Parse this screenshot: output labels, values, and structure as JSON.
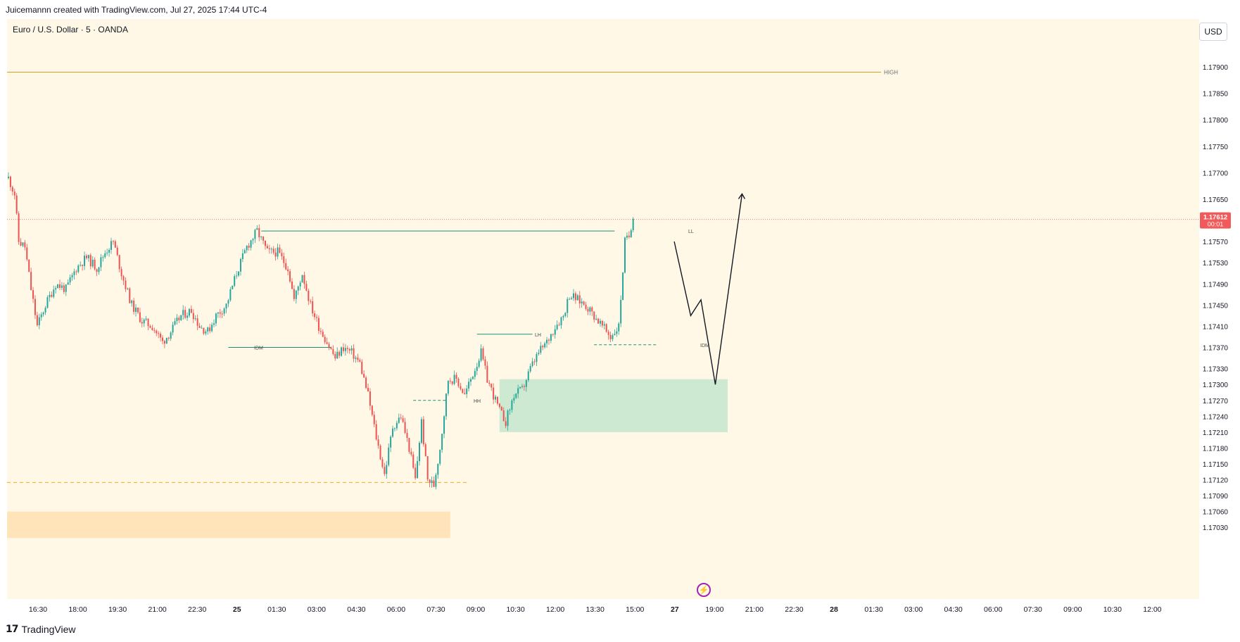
{
  "header": {
    "attribution": "Juicemannn created with TradingView.com, Jul 27, 2025 17:44 UTC-4"
  },
  "symbol_title": "Euro / U.S. Dollar · 5 · OANDA",
  "currency_button": "USD",
  "footer": {
    "logo_glyph": "17",
    "brand": "TradingView"
  },
  "icons": {
    "lightning": "lightning-icon",
    "logo": "tradingview-logo-icon"
  },
  "colors": {
    "background": "#fff8e7",
    "up_candle": "#26a69a",
    "down_candle": "#ef5350",
    "high_line": "#d4a017",
    "zone_green": "#b9e2c7",
    "zone_orange": "#ffe0b2",
    "price_tag": "#f05a5a",
    "annotation_line": "#1f8f7a"
  },
  "chart_data": {
    "type": "candlestick",
    "title": "Euro / U.S. Dollar · 5 · OANDA",
    "y_axis": {
      "ticks": [
        1.179,
        1.1785,
        1.178,
        1.1775,
        1.177,
        1.1765,
        1.1757,
        1.1753,
        1.1749,
        1.1745,
        1.1741,
        1.1737,
        1.1733,
        1.173,
        1.1727,
        1.1724,
        1.1721,
        1.1718,
        1.1715,
        1.1712,
        1.1709,
        1.1706,
        1.1703
      ],
      "tick_labels": [
        "1.17900",
        "1.17850",
        "1.17800",
        "1.17750",
        "1.17700",
        "1.17650",
        "1.17570",
        "1.17530",
        "1.17490",
        "1.17450",
        "1.17410",
        "1.17370",
        "1.17330",
        "1.17300",
        "1.17270",
        "1.17240",
        "1.17210",
        "1.17180",
        "1.17150",
        "1.17120",
        "1.17090",
        "1.17060",
        "1.17030"
      ]
    },
    "x_axis": {
      "tick_labels": [
        "16:30",
        "18:00",
        "19:30",
        "21:00",
        "22:30",
        "25",
        "01:30",
        "03:00",
        "04:30",
        "06:00",
        "07:30",
        "09:00",
        "10:30",
        "12:00",
        "13:30",
        "15:00",
        "27",
        "19:00",
        "21:00",
        "22:30",
        "28",
        "01:30",
        "03:00",
        "04:30",
        "06:00",
        "07:30",
        "09:00",
        "10:30",
        "12:00"
      ]
    },
    "current_price": {
      "label": "1.17612",
      "countdown": "00:01",
      "value": 1.17612
    },
    "price_path": [
      [
        0,
        1.1769
      ],
      [
        3,
        1.1766
      ],
      [
        5,
        1.1757
      ],
      [
        8,
        1.1756
      ],
      [
        11,
        1.1748
      ],
      [
        14,
        1.1741
      ],
      [
        18,
        1.1745
      ],
      [
        23,
        1.1749
      ],
      [
        28,
        1.1748
      ],
      [
        33,
        1.1752
      ],
      [
        38,
        1.1754
      ],
      [
        43,
        1.1752
      ],
      [
        47,
        1.1755
      ],
      [
        51,
        1.1757
      ],
      [
        55,
        1.1751
      ],
      [
        60,
        1.1745
      ],
      [
        65,
        1.1742
      ],
      [
        70,
        1.1741
      ],
      [
        75,
        1.1738
      ],
      [
        79,
        1.174
      ],
      [
        84,
        1.1743
      ],
      [
        89,
        1.1744
      ],
      [
        93,
        1.1741
      ],
      [
        97,
        1.174
      ],
      [
        101,
        1.1743
      ],
      [
        106,
        1.1745
      ],
      [
        111,
        1.1751
      ],
      [
        116,
        1.1756
      ],
      [
        121,
        1.1759
      ],
      [
        126,
        1.1755
      ],
      [
        131,
        1.1755
      ],
      [
        136,
        1.1752
      ],
      [
        139,
        1.1746
      ],
      [
        143,
        1.1751
      ],
      [
        147,
        1.1745
      ],
      [
        151,
        1.1741
      ],
      [
        155,
        1.1738
      ],
      [
        159,
        1.1735
      ],
      [
        163,
        1.1737
      ],
      [
        167,
        1.1736
      ],
      [
        171,
        1.1734
      ],
      [
        175,
        1.1728
      ],
      [
        179,
        1.172
      ],
      [
        183,
        1.1713
      ],
      [
        187,
        1.1722
      ],
      [
        191,
        1.1724
      ],
      [
        195,
        1.1718
      ],
      [
        198,
        1.1712
      ],
      [
        201,
        1.1723
      ],
      [
        204,
        1.1712
      ],
      [
        207,
        1.1711
      ],
      [
        210,
        1.1718
      ],
      [
        214,
        1.1731
      ],
      [
        218,
        1.1731
      ],
      [
        222,
        1.1728
      ],
      [
        226,
        1.1732
      ],
      [
        230,
        1.1736
      ],
      [
        233,
        1.1731
      ],
      [
        236,
        1.1728
      ],
      [
        239,
        1.1725
      ],
      [
        242,
        1.1723
      ],
      [
        246,
        1.1728
      ],
      [
        250,
        1.1729
      ],
      [
        254,
        1.1733
      ],
      [
        258,
        1.1736
      ],
      [
        262,
        1.1738
      ],
      [
        266,
        1.1741
      ],
      [
        270,
        1.1743
      ],
      [
        273,
        1.1747
      ],
      [
        277,
        1.1746
      ],
      [
        281,
        1.1745
      ],
      [
        285,
        1.1743
      ],
      [
        289,
        1.1741
      ],
      [
        293,
        1.1739
      ],
      [
        297,
        1.1741
      ],
      [
        300,
        1.1757
      ],
      [
        302,
        1.1758
      ],
      [
        304,
        1.1762
      ]
    ],
    "horizontal_levels": [
      {
        "label": "HIGH",
        "value": 1.1789
      },
      {
        "label": "",
        "value": 1.17115
      }
    ],
    "structure_labels": [
      "LL",
      "IDM",
      "HH",
      "LH",
      "IDM"
    ],
    "zones": [
      {
        "type": "demand",
        "x_from": 240,
        "x_to": 350,
        "price_from": 1.1721,
        "price_to": 1.1731
      },
      {
        "type": "supply-bottom",
        "x_from": 0,
        "x_to": 215,
        "price_from": 1.1701,
        "price_to": 1.1706
      }
    ],
    "projection_path": [
      [
        324,
        1.1757
      ],
      [
        332,
        1.1743
      ],
      [
        337,
        1.1746
      ],
      [
        344,
        1.173
      ],
      [
        357,
        1.1766
      ]
    ],
    "legend": "none",
    "grid": false
  }
}
